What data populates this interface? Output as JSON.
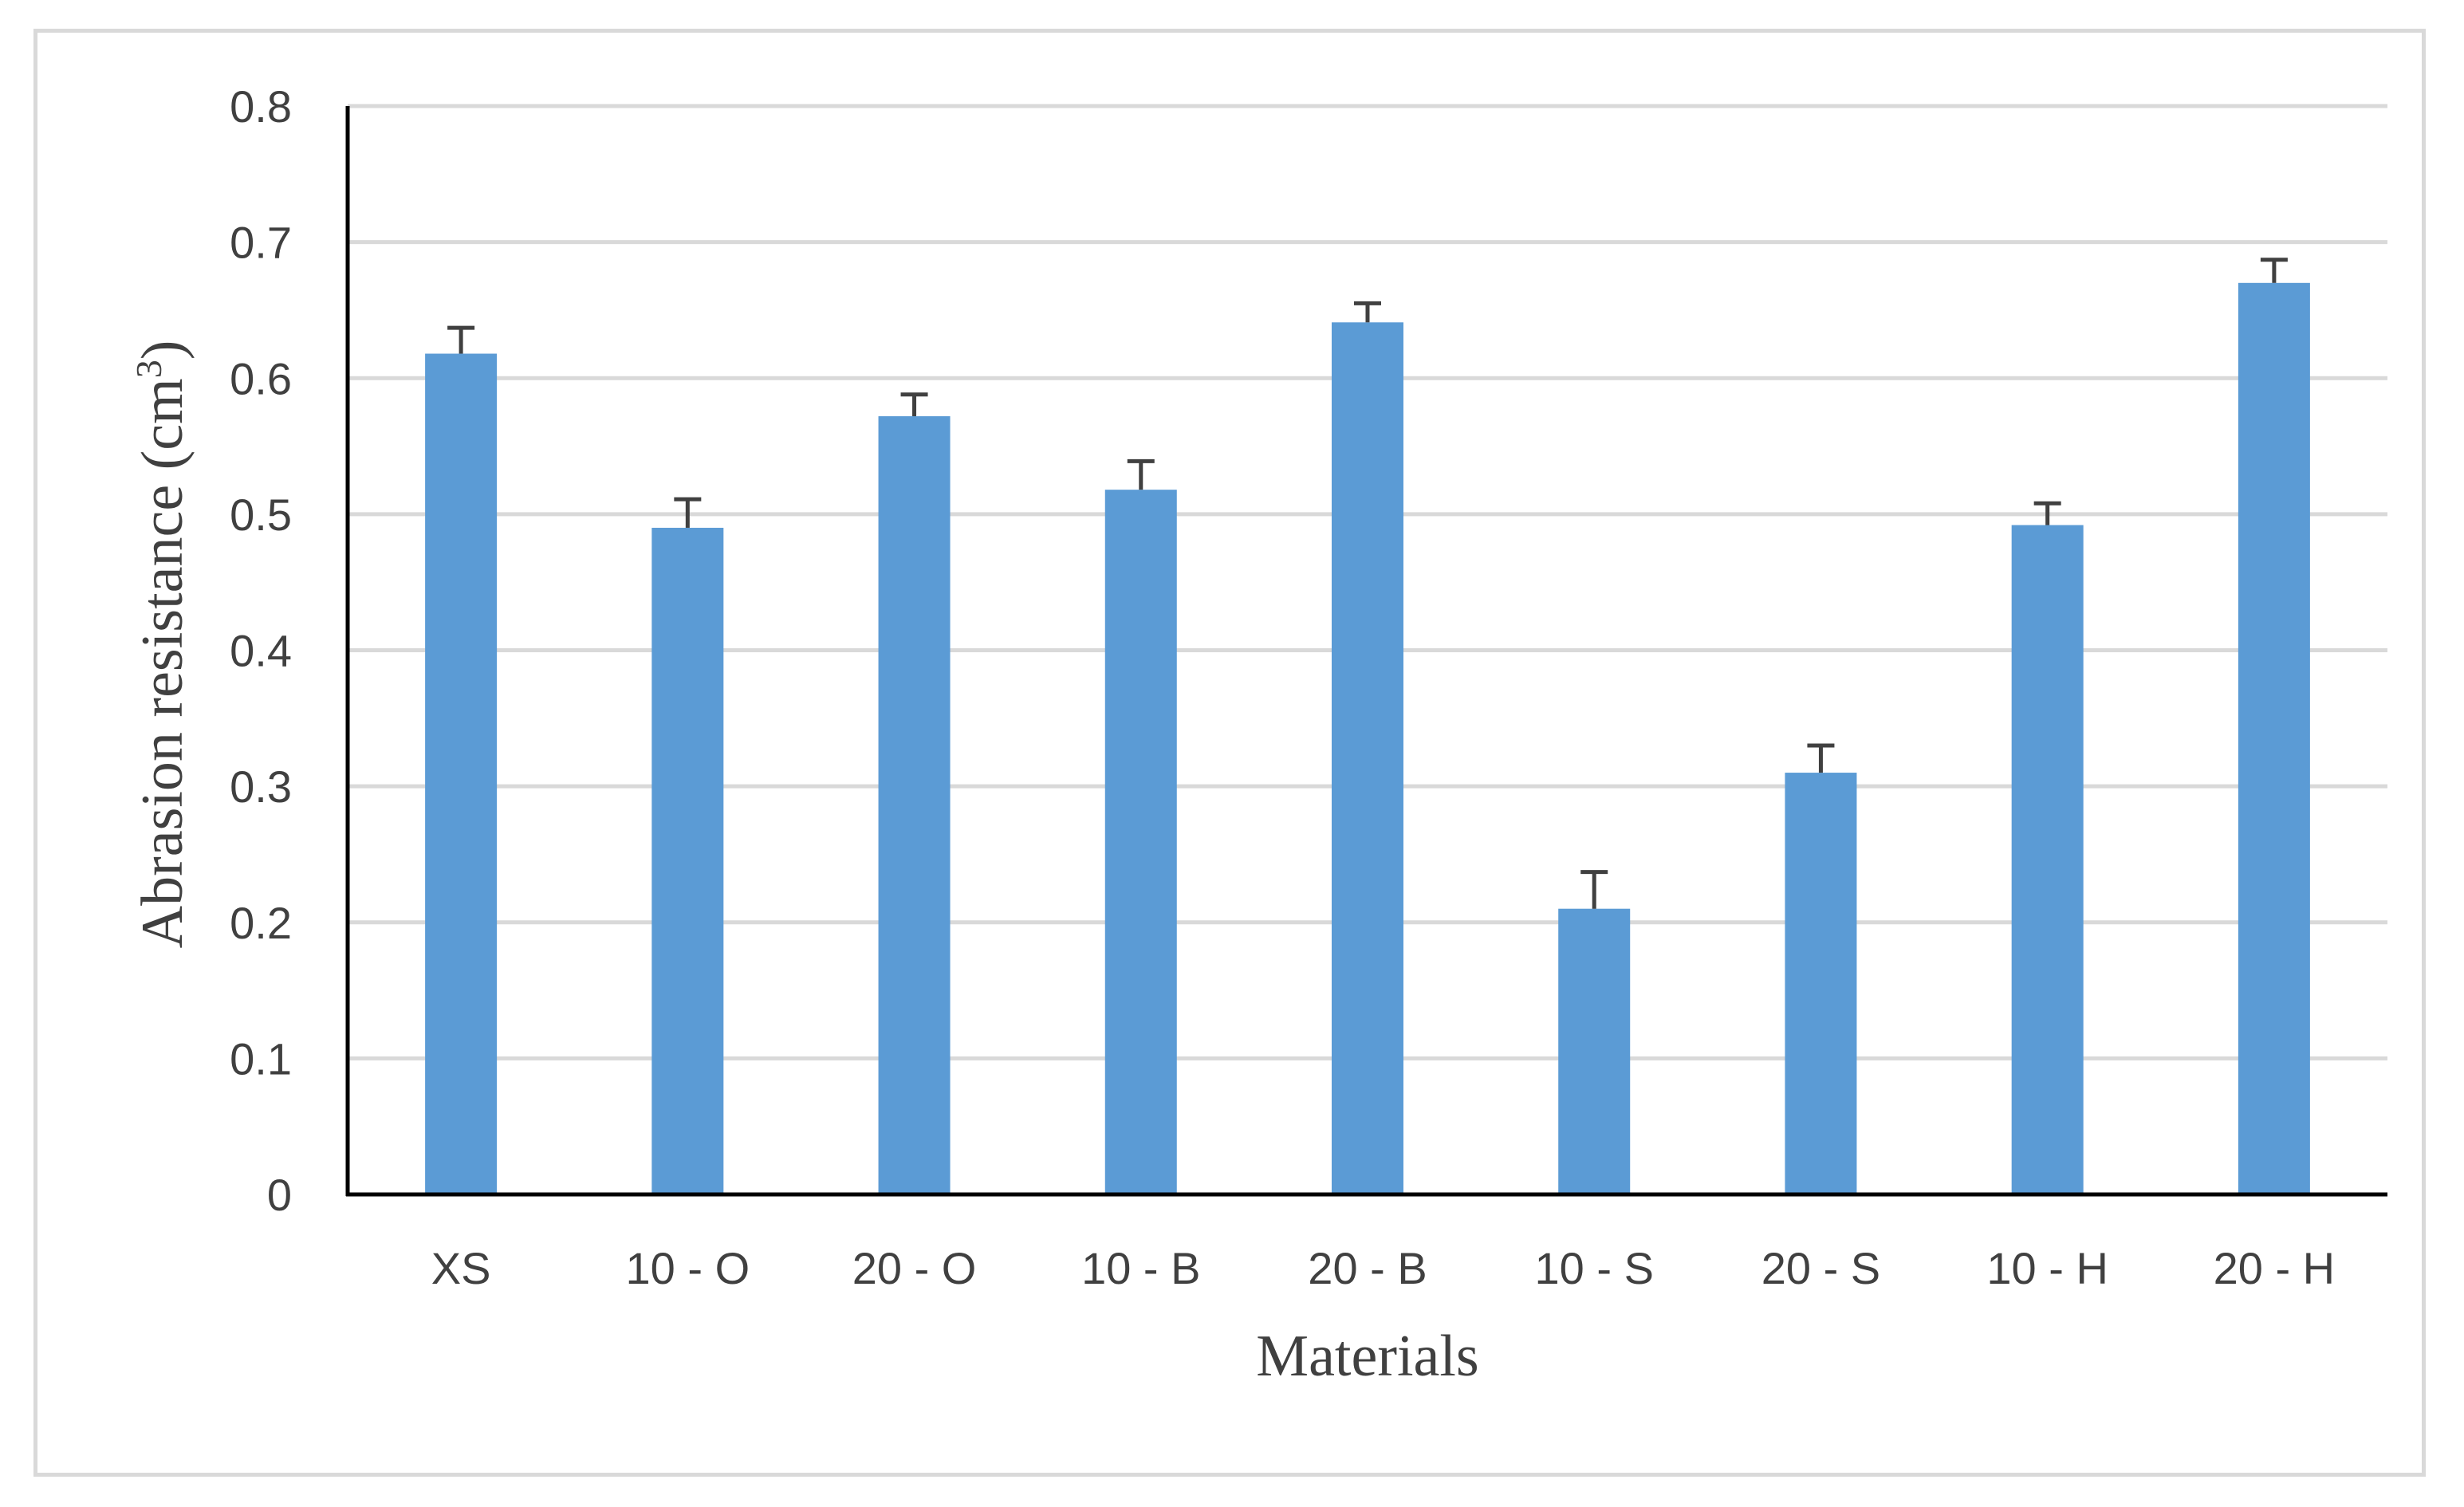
{
  "chart_data": {
    "type": "bar",
    "categories": [
      "XS",
      "10 - O",
      "20 - O",
      "10 - B",
      "20 - B",
      "10 - S",
      "20 - S",
      "10 - H",
      "20 - H"
    ],
    "values": [
      0.618,
      0.49,
      0.572,
      0.518,
      0.641,
      0.21,
      0.31,
      0.492,
      0.67
    ],
    "error_plus": [
      0.019,
      0.021,
      0.016,
      0.021,
      0.014,
      0.027,
      0.02,
      0.016,
      0.017
    ],
    "xlabel": "Materials",
    "ylabel": {
      "main": "Abrasion resistance (cm",
      "sup": "3",
      "tail": ")"
    },
    "ylim": [
      0,
      0.8
    ],
    "yticks": [
      "0",
      "0.1",
      "0.2",
      "0.3",
      "0.4",
      "0.5",
      "0.6",
      "0.7",
      "0.8"
    ],
    "grid": true,
    "legend": "none",
    "colors": {
      "bar": "#5b9bd5",
      "grid": "#d9d9d9",
      "axis": "#000000",
      "error": "#404040"
    }
  }
}
